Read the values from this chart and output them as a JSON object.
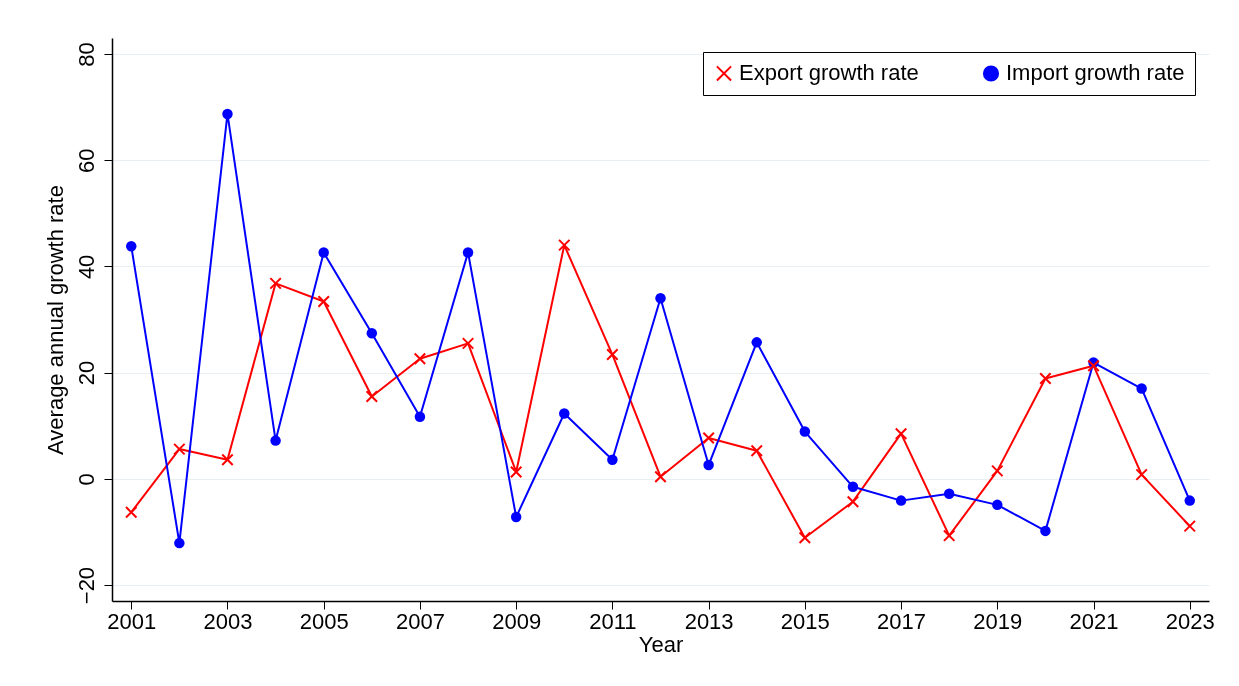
{
  "chart_data": {
    "type": "line",
    "xlabel": "Year",
    "ylabel": "Average annual growth rate",
    "x": [
      2001,
      2002,
      2003,
      2004,
      2005,
      2006,
      2007,
      2008,
      2009,
      2010,
      2011,
      2012,
      2013,
      2014,
      2015,
      2016,
      2017,
      2018,
      2019,
      2020,
      2021,
      2022,
      2023
    ],
    "series": [
      {
        "name": "Export growth rate",
        "color": "#ff0000",
        "marker": "cross",
        "values": [
          -6.3,
          5.6,
          3.6,
          36.8,
          33.4,
          15.5,
          22.6,
          25.5,
          1.3,
          44,
          23.4,
          0.4,
          7.7,
          5.3,
          -11.1,
          -4.3,
          8.5,
          -10.7,
          1.5,
          18.9,
          21.3,
          0.8,
          -8.9
        ]
      },
      {
        "name": "Import growth rate",
        "color": "#0000ff",
        "marker": "circle",
        "values": [
          43.8,
          -12.1,
          68.7,
          7.2,
          42.6,
          27.4,
          11.7,
          42.6,
          -7.2,
          12.3,
          3.6,
          34,
          2.6,
          25.7,
          8.9,
          -1.5,
          -4.1,
          -2.8,
          -4.9,
          -9.8,
          21.9,
          17,
          -4.1
        ]
      }
    ],
    "xlim": [
      2000.6,
      2023.4
    ],
    "xticks": [
      2001,
      2003,
      2005,
      2007,
      2009,
      2011,
      2013,
      2015,
      2017,
      2019,
      2021,
      2023
    ],
    "ylim": [
      -23,
      83
    ],
    "yticks": [
      -20,
      0,
      20,
      40,
      60,
      80
    ],
    "grid": "y",
    "legend": "top right",
    "line_style": "solid"
  }
}
